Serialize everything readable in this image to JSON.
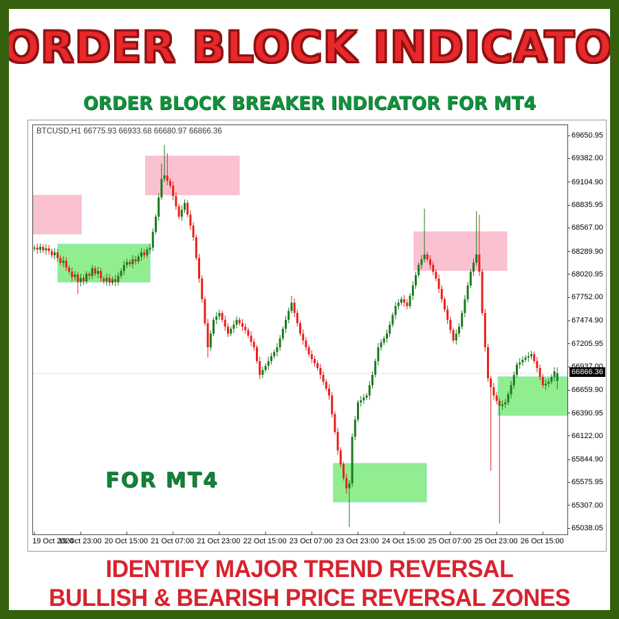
{
  "page": {
    "title": "ORDER BLOCK INDICATOR",
    "subtitle": "ORDER BLOCK BREAKER INDICATOR FOR MT4",
    "watermark": "FOR MT4",
    "footer_line1": "IDENTIFY MAJOR TREND REVERSAL",
    "footer_line2": "BULLISH & BEARISH PRICE REVERSAL ZONES"
  },
  "colors": {
    "frame_border": "#35610f",
    "title_red": "#e8282b",
    "title_outline": "#8c1212",
    "subtitle_green": "#12913d",
    "footer_red": "#d7232e",
    "candle_up": "#1b7a1e",
    "candle_down": "#e8211a",
    "zone_pink": "#fac2d0",
    "zone_pink_border": "#f7b3c6",
    "zone_green": "#90ee90",
    "zone_green_border": "#7de2c3",
    "price_line": "#c9c9c9",
    "axis_text": "#000000",
    "price_tag_bg": "#000000",
    "price_tag_text": "#ffffff"
  },
  "chart_data": {
    "type": "candlestick",
    "symbol": "BTCUSD",
    "timeframe": "H1",
    "symbol_header": "BTCUSD,H1  66775.93 66933.68 66680.97 66866.36",
    "ohlc_header": {
      "open": 66775.93,
      "high": 66933.68,
      "low": 66680.97,
      "close": 66866.36
    },
    "current_price": 66866.36,
    "current_price_label": "66866.36",
    "price_top": 69781,
    "price_bottom": 64973,
    "bars_total": 185,
    "y_ticks": [
      "69650.95",
      "69382.00",
      "69104.90",
      "68835.95",
      "68567.00",
      "68289.90",
      "68020.95",
      "67752.00",
      "67474.90",
      "67205.95",
      "66937.00",
      "66659.90",
      "66390.95",
      "66122.00",
      "65844.90",
      "65575.95",
      "65307.00",
      "65038.05"
    ],
    "x_labels": [
      "19 Oct 2024",
      "19 Oct 23:00",
      "20 Oct 15:00",
      "21 Oct 07:00",
      "21 Oct 23:00",
      "22 Oct 15:00",
      "23 Oct 07:00",
      "23 Oct 23:00",
      "24 Oct 15:00",
      "25 Oct 07:00",
      "25 Oct 23:00",
      "26 Oct 15:00"
    ],
    "x_label_bar_indices": [
      0,
      16,
      32,
      48,
      64,
      80,
      96,
      112,
      128,
      144,
      160,
      176
    ],
    "order_blocks": [
      {
        "kind": "bearish",
        "bar_start": 0,
        "bar_end": 16.7,
        "price_low": 68504,
        "price_high": 68956
      },
      {
        "kind": "bullish",
        "bar_start": 8.6,
        "bar_end": 40.5,
        "price_low": 67938,
        "price_high": 68383
      },
      {
        "kind": "bearish",
        "bar_start": 39,
        "bar_end": 71.4,
        "price_low": 68964,
        "price_high": 69417
      },
      {
        "kind": "bullish",
        "bar_start": 104,
        "bar_end": 136.2,
        "price_low": 65354,
        "price_high": 65806
      },
      {
        "kind": "bearish",
        "bar_start": 131.9,
        "bar_end": 164,
        "price_low": 68076,
        "price_high": 68528
      },
      {
        "kind": "bullish",
        "bar_start": 161,
        "bar_end": 185,
        "price_low": 66372,
        "price_high": 66824
      }
    ],
    "candles": [
      [
        68330,
        68372,
        68300,
        68342
      ],
      [
        68342,
        68392,
        68268,
        68318
      ],
      [
        68318,
        68390,
        68278,
        68350
      ],
      [
        68350,
        68380,
        68280,
        68310
      ],
      [
        68310,
        68384,
        68260,
        68334
      ],
      [
        68334,
        68374,
        68262,
        68302
      ],
      [
        68302,
        68332,
        68223,
        68253
      ],
      [
        68253,
        68336,
        68203,
        68286
      ],
      [
        68286,
        68326,
        68181,
        68221
      ],
      [
        68221,
        68251,
        68134,
        68164
      ],
      [
        68164,
        68239,
        68114,
        68189
      ],
      [
        68189,
        68229,
        68068,
        68108
      ],
      [
        68108,
        68138,
        68030,
        68060
      ],
      [
        68060,
        68110,
        67945,
        67995
      ],
      [
        67995,
        68067,
        67955,
        68027
      ],
      [
        68027,
        68057,
        67800,
        67938
      ],
      [
        67938,
        68037,
        67888,
        67987
      ],
      [
        67987,
        68027,
        67906,
        67946
      ],
      [
        67946,
        68065,
        67916,
        68035
      ],
      [
        68035,
        68061,
        67961,
        68011
      ],
      [
        68011,
        68140,
        67971,
        68100
      ],
      [
        68100,
        68130,
        68005,
        68035
      ],
      [
        68035,
        68118,
        67985,
        68068
      ],
      [
        68068,
        68108,
        67939,
        67979
      ],
      [
        67979,
        68009,
        67916,
        67946
      ],
      [
        67946,
        68037,
        67896,
        67987
      ],
      [
        67987,
        68027,
        67890,
        67930
      ],
      [
        67930,
        68001,
        67900,
        67971
      ],
      [
        67971,
        68021,
        67888,
        67938
      ],
      [
        67938,
        68051,
        67898,
        68011
      ],
      [
        68011,
        68098,
        67981,
        68068
      ],
      [
        68068,
        68190,
        68018,
        68140
      ],
      [
        68140,
        68213,
        68100,
        68173
      ],
      [
        68173,
        68203,
        68118,
        68148
      ],
      [
        68148,
        68255,
        68098,
        68205
      ],
      [
        68205,
        68245,
        68141,
        68181
      ],
      [
        68181,
        68267,
        68151,
        68237
      ],
      [
        68237,
        68336,
        68187,
        68286
      ],
      [
        68286,
        68326,
        68213,
        68253
      ],
      [
        68253,
        68348,
        68223,
        68318
      ],
      [
        68318,
        68392,
        68268,
        68342
      ],
      [
        68342,
        68568,
        68302,
        68528
      ],
      [
        68528,
        68736,
        68498,
        68706
      ],
      [
        68706,
        68982,
        68656,
        68932
      ],
      [
        68932,
        69330,
        68902,
        69150
      ],
      [
        69150,
        69550,
        69110,
        69191
      ],
      [
        69191,
        69450,
        69076,
        69126
      ],
      [
        69126,
        69156,
        69040,
        69070
      ],
      [
        69070,
        69120,
        68898,
        68948
      ],
      [
        68948,
        68988,
        68787,
        68827
      ],
      [
        68827,
        68857,
        68676,
        68706
      ],
      [
        68706,
        68837,
        68656,
        68787
      ],
      [
        68787,
        68908,
        68747,
        68868
      ],
      [
        68868,
        68898,
        68700,
        68730
      ],
      [
        68730,
        68780,
        68551,
        68601
      ],
      [
        68601,
        68641,
        68424,
        68464
      ],
      [
        68464,
        68494,
        68191,
        68221
      ],
      [
        68221,
        68271,
        67929,
        67979
      ],
      [
        67979,
        68019,
        67696,
        67736
      ],
      [
        67736,
        67766,
        67424,
        67454
      ],
      [
        67454,
        67504,
        67051,
        67171
      ],
      [
        67171,
        67372,
        67131,
        67332
      ],
      [
        67332,
        67524,
        67302,
        67494
      ],
      [
        67494,
        67584,
        67444,
        67534
      ],
      [
        67534,
        67615,
        67494,
        67575
      ],
      [
        67575,
        67605,
        67464,
        67494
      ],
      [
        67494,
        67544,
        67363,
        67413
      ],
      [
        67413,
        67453,
        67292,
        67332
      ],
      [
        67332,
        67419,
        67302,
        67389
      ],
      [
        67389,
        67487,
        67339,
        67437
      ],
      [
        67437,
        67534,
        67397,
        67494
      ],
      [
        67494,
        67524,
        67424,
        67454
      ],
      [
        67454,
        67504,
        67363,
        67413
      ],
      [
        67413,
        67453,
        67333,
        67373
      ],
      [
        67373,
        67403,
        67278,
        67308
      ],
      [
        67308,
        67358,
        67185,
        67235
      ],
      [
        67235,
        67275,
        67131,
        67171
      ],
      [
        67171,
        67201,
        66979,
        67009
      ],
      [
        67009,
        67059,
        66798,
        66848
      ],
      [
        66848,
        66944,
        66808,
        66904
      ],
      [
        66904,
        66983,
        66874,
        66953
      ],
      [
        66953,
        67059,
        66903,
        67009
      ],
      [
        67009,
        67106,
        66969,
        67066
      ],
      [
        67066,
        67144,
        67036,
        67114
      ],
      [
        67114,
        67221,
        67064,
        67171
      ],
      [
        67171,
        67316,
        67131,
        67276
      ],
      [
        67276,
        67419,
        67246,
        67389
      ],
      [
        67389,
        67544,
        67339,
        67494
      ],
      [
        67494,
        67639,
        67454,
        67599
      ],
      [
        67599,
        67776,
        67569,
        67696
      ],
      [
        67696,
        67746,
        67525,
        67575
      ],
      [
        67575,
        67615,
        67414,
        67454
      ],
      [
        67454,
        67484,
        67302,
        67332
      ],
      [
        67332,
        67382,
        67202,
        67252
      ],
      [
        67252,
        67292,
        67131,
        67171
      ],
      [
        67171,
        67201,
        67060,
        67090
      ],
      [
        67090,
        67140,
        66983,
        67033
      ],
      [
        67033,
        67073,
        66945,
        66985
      ],
      [
        66985,
        67015,
        66898,
        66928
      ],
      [
        66928,
        66978,
        66798,
        66848
      ],
      [
        66848,
        66888,
        66727,
        66767
      ],
      [
        66767,
        66797,
        66656,
        66686
      ],
      [
        66686,
        66736,
        66555,
        66605
      ],
      [
        66605,
        66645,
        66347,
        66387
      ],
      [
        66387,
        66417,
        66147,
        66177
      ],
      [
        66177,
        66227,
        65909,
        65959
      ],
      [
        65959,
        65999,
        65757,
        65797
      ],
      [
        65797,
        65827,
        65606,
        65636
      ],
      [
        65636,
        65686,
        65451,
        65514
      ],
      [
        65514,
        65611,
        65060,
        65571
      ],
      [
        65571,
        66160,
        65531,
        66120
      ],
      [
        66120,
        66362,
        66080,
        66322
      ],
      [
        66322,
        66554,
        66292,
        66524
      ],
      [
        66524,
        66599,
        66474,
        66549
      ],
      [
        66549,
        66621,
        66509,
        66581
      ],
      [
        66581,
        66635,
        66551,
        66605
      ],
      [
        66605,
        66776,
        66555,
        66726
      ],
      [
        66726,
        66888,
        66686,
        66848
      ],
      [
        66848,
        67039,
        66818,
        67009
      ],
      [
        67009,
        67221,
        66959,
        67171
      ],
      [
        67171,
        67267,
        67131,
        67227
      ],
      [
        67227,
        67306,
        67197,
        67276
      ],
      [
        67276,
        67382,
        67226,
        67332
      ],
      [
        67332,
        67477,
        67292,
        67437
      ],
      [
        67437,
        67581,
        67407,
        67551
      ],
      [
        67551,
        67706,
        67501,
        67656
      ],
      [
        67656,
        67736,
        67616,
        67696
      ],
      [
        67696,
        67766,
        67666,
        67736
      ],
      [
        67736,
        67786,
        67646,
        67696
      ],
      [
        67696,
        67736,
        67616,
        67656
      ],
      [
        67656,
        67807,
        67626,
        67777
      ],
      [
        67777,
        67948,
        67727,
        67898
      ],
      [
        67898,
        68059,
        67858,
        68019
      ],
      [
        68019,
        68170,
        67989,
        68140
      ],
      [
        68140,
        68255,
        68090,
        68205
      ],
      [
        68205,
        68800,
        68165,
        68262
      ],
      [
        68262,
        68292,
        68175,
        68205
      ],
      [
        68205,
        68255,
        68090,
        68140
      ],
      [
        68140,
        68180,
        68020,
        68060
      ],
      [
        68060,
        68090,
        67949,
        67979
      ],
      [
        67979,
        68029,
        67808,
        67858
      ],
      [
        67858,
        67898,
        67696,
        67736
      ],
      [
        67736,
        67766,
        67585,
        67615
      ],
      [
        67615,
        67665,
        67444,
        67494
      ],
      [
        67494,
        67534,
        67333,
        67373
      ],
      [
        67373,
        67403,
        67222,
        67252
      ],
      [
        67252,
        67382,
        67202,
        67332
      ],
      [
        67332,
        67453,
        67292,
        67413
      ],
      [
        67413,
        67605,
        67383,
        67575
      ],
      [
        67575,
        67786,
        67525,
        67736
      ],
      [
        67736,
        67938,
        67696,
        67898
      ],
      [
        67898,
        68090,
        67868,
        68060
      ],
      [
        68060,
        68215,
        68010,
        68165
      ],
      [
        68165,
        68770,
        68125,
        68262
      ],
      [
        68262,
        68730,
        68010,
        68060
      ],
      [
        68060,
        68090,
        67545,
        67575
      ],
      [
        67575,
        67625,
        67121,
        67171
      ],
      [
        67171,
        67211,
        66767,
        66807
      ],
      [
        66807,
        66837,
        65720,
        66702
      ],
      [
        66702,
        66752,
        66555,
        66605
      ],
      [
        66605,
        66645,
        66501,
        66541
      ],
      [
        66541,
        66571,
        65100,
        66484
      ],
      [
        66484,
        66550,
        66434,
        66500
      ],
      [
        66500,
        66564,
        66460,
        66524
      ],
      [
        66524,
        66651,
        66494,
        66621
      ],
      [
        66621,
        66776,
        66571,
        66726
      ],
      [
        66726,
        66888,
        66686,
        66848
      ],
      [
        66848,
        66999,
        66818,
        66969
      ],
      [
        66969,
        67043,
        66919,
        66993
      ],
      [
        66993,
        67065,
        66953,
        67025
      ],
      [
        67025,
        67080,
        66995,
        67050
      ],
      [
        67050,
        67116,
        67000,
        67066
      ],
      [
        67066,
        67130,
        67026,
        67090
      ],
      [
        67090,
        67120,
        66979,
        67009
      ],
      [
        67009,
        67059,
        66878,
        66928
      ],
      [
        66928,
        66968,
        66783,
        66823
      ],
      [
        66823,
        66853,
        66696,
        66726
      ],
      [
        66726,
        66793,
        66676,
        66743
      ],
      [
        66743,
        66807,
        66703,
        66767
      ],
      [
        66767,
        66853,
        66737,
        66823
      ],
      [
        66823,
        66938,
        66773,
        66888
      ],
      [
        66776,
        66934,
        66681,
        66866
      ]
    ]
  }
}
